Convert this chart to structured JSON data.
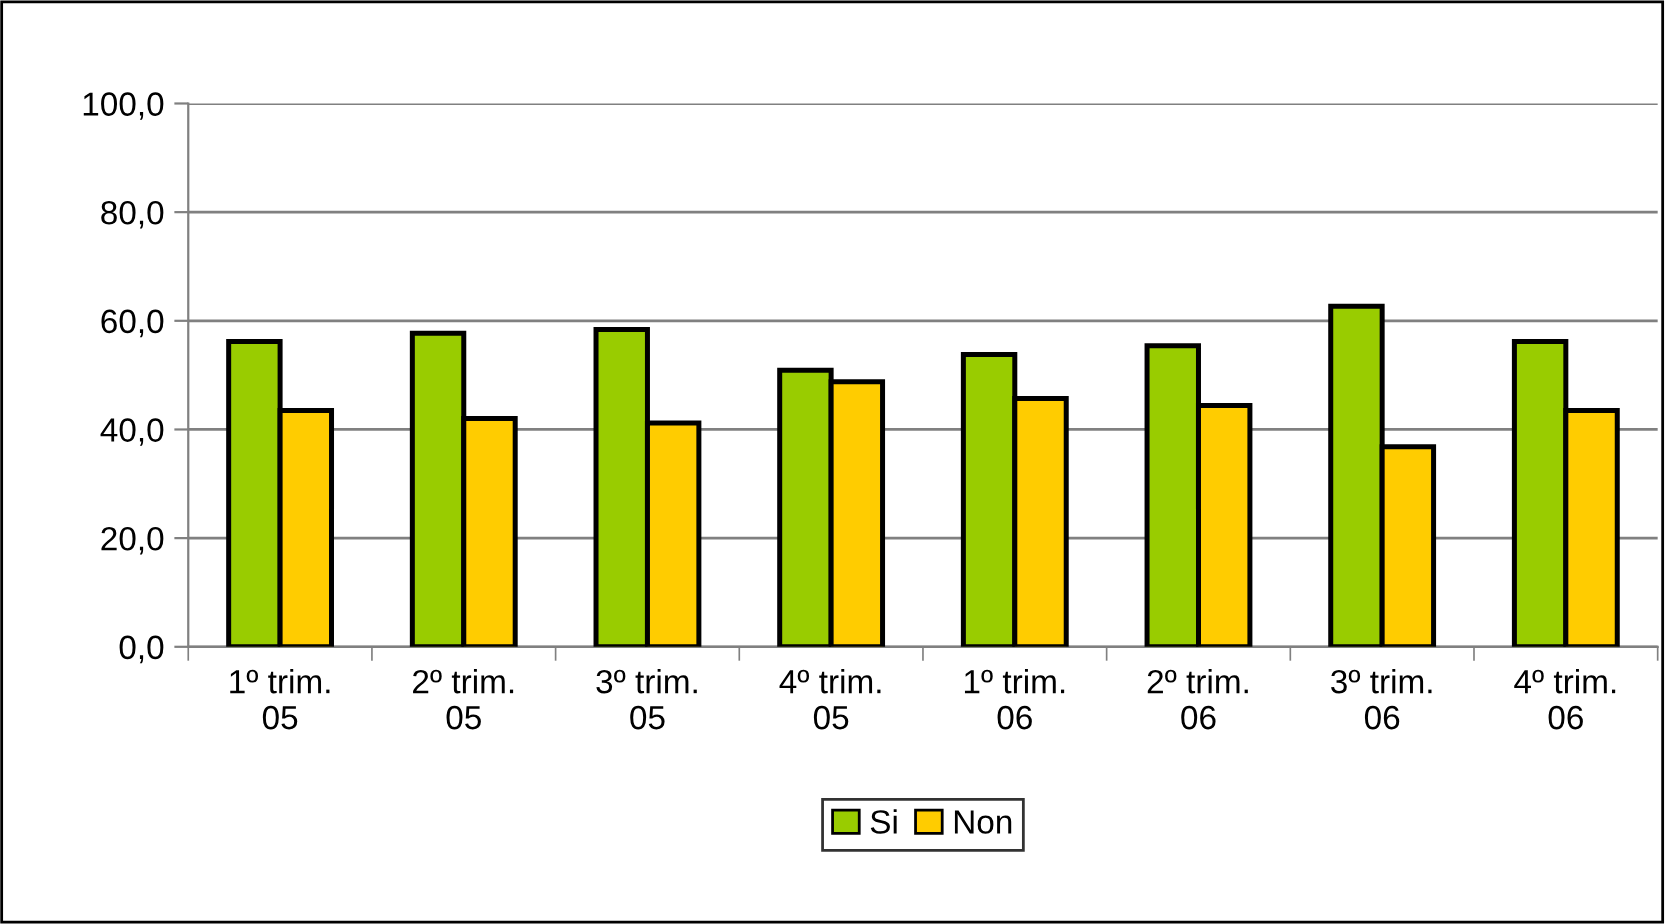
{
  "chart_data": {
    "type": "bar",
    "categories": [
      "1º trim.\n05",
      "2º trim.\n05",
      "3º trim.\n05",
      "4º trim.\n05",
      "1º trim.\n06",
      "2º trim.\n06",
      "3º trim.\n06",
      "4º trim.\n06"
    ],
    "series": [
      {
        "name": "Si",
        "color": "#99cc00",
        "values": [
          56.2,
          57.7,
          58.4,
          50.9,
          53.8,
          55.4,
          62.7,
          56.2
        ]
      },
      {
        "name": "Non",
        "color": "#ffcc00",
        "values": [
          43.5,
          42.0,
          41.2,
          48.8,
          45.7,
          44.4,
          36.8,
          43.5
        ]
      }
    ],
    "ylim": [
      0,
      100
    ],
    "yticks": [
      {
        "value": 0,
        "label": "0,0"
      },
      {
        "value": 20,
        "label": "20,0"
      },
      {
        "value": 40,
        "label": "40,0"
      },
      {
        "value": 60,
        "label": "60,0"
      },
      {
        "value": 80,
        "label": "80,0"
      },
      {
        "value": 100,
        "label": "100,0"
      }
    ],
    "grid": "y",
    "legend": "bottom"
  }
}
